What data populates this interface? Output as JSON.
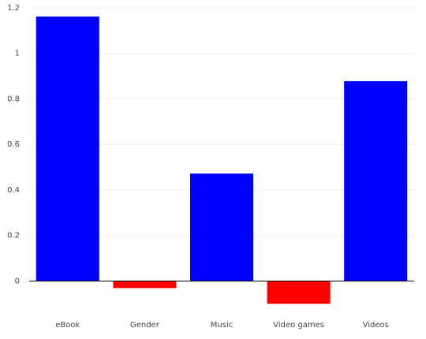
{
  "chart_data": {
    "type": "bar",
    "categories": [
      "eBook",
      "Gender",
      "Music",
      "Video games",
      "Videos"
    ],
    "values": [
      1.162,
      -0.031,
      0.472,
      -0.1,
      0.878
    ],
    "colors": [
      "#0000ff",
      "#ff0000",
      "#0000ff",
      "#ff0000",
      "#0000ff"
    ],
    "ylim": [
      -0.13,
      1.2
    ],
    "yticks": [
      1.2,
      1,
      0.8,
      0.6,
      0.4,
      0.2,
      0
    ],
    "grid": true
  }
}
